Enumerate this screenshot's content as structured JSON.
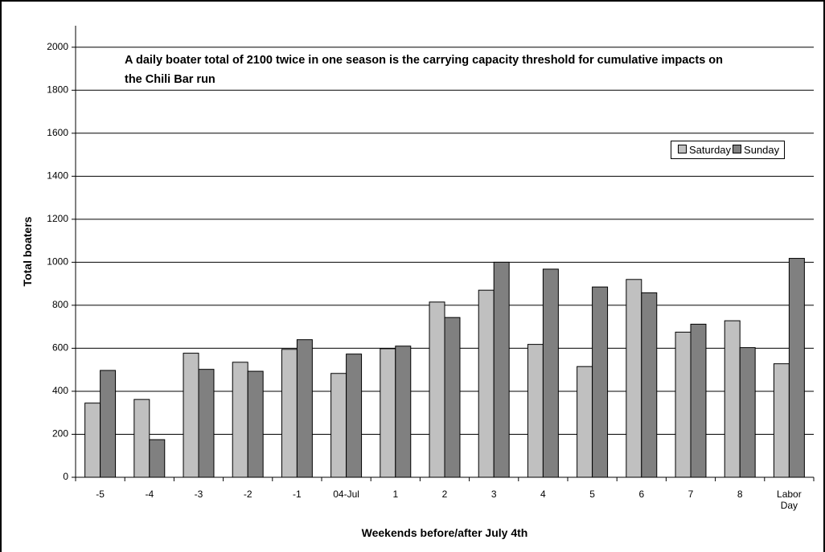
{
  "chart_data": {
    "type": "bar",
    "annotation": "A daily boater total of 2100 twice in one season is the carrying capacity threshold for cumulative impacts on the Chili Bar run",
    "x_label": "Weekends before/after July 4th",
    "y_label": "Total boaters",
    "categories": [
      "-5",
      "-4",
      "-3",
      "-2",
      "-1",
      "04-Jul",
      "1",
      "2",
      "3",
      "4",
      "5",
      "6",
      "7",
      "8",
      "Labor Day"
    ],
    "series": [
      {
        "name": "Saturday",
        "color": "#c0c0c0",
        "values": [
          345,
          362,
          577,
          535,
          595,
          483,
          598,
          815,
          870,
          618,
          515,
          920,
          675,
          728,
          528
        ]
      },
      {
        "name": "Sunday",
        "color": "#808080",
        "values": [
          497,
          175,
          502,
          493,
          640,
          573,
          610,
          743,
          1000,
          968,
          885,
          858,
          712,
          603,
          1018
        ]
      }
    ],
    "ylim": [
      0,
      2100
    ],
    "yticks": [
      0,
      200,
      400,
      600,
      800,
      1000,
      1200,
      1400,
      1600,
      1800,
      2000
    ],
    "grid": true,
    "legend": "upper right"
  }
}
